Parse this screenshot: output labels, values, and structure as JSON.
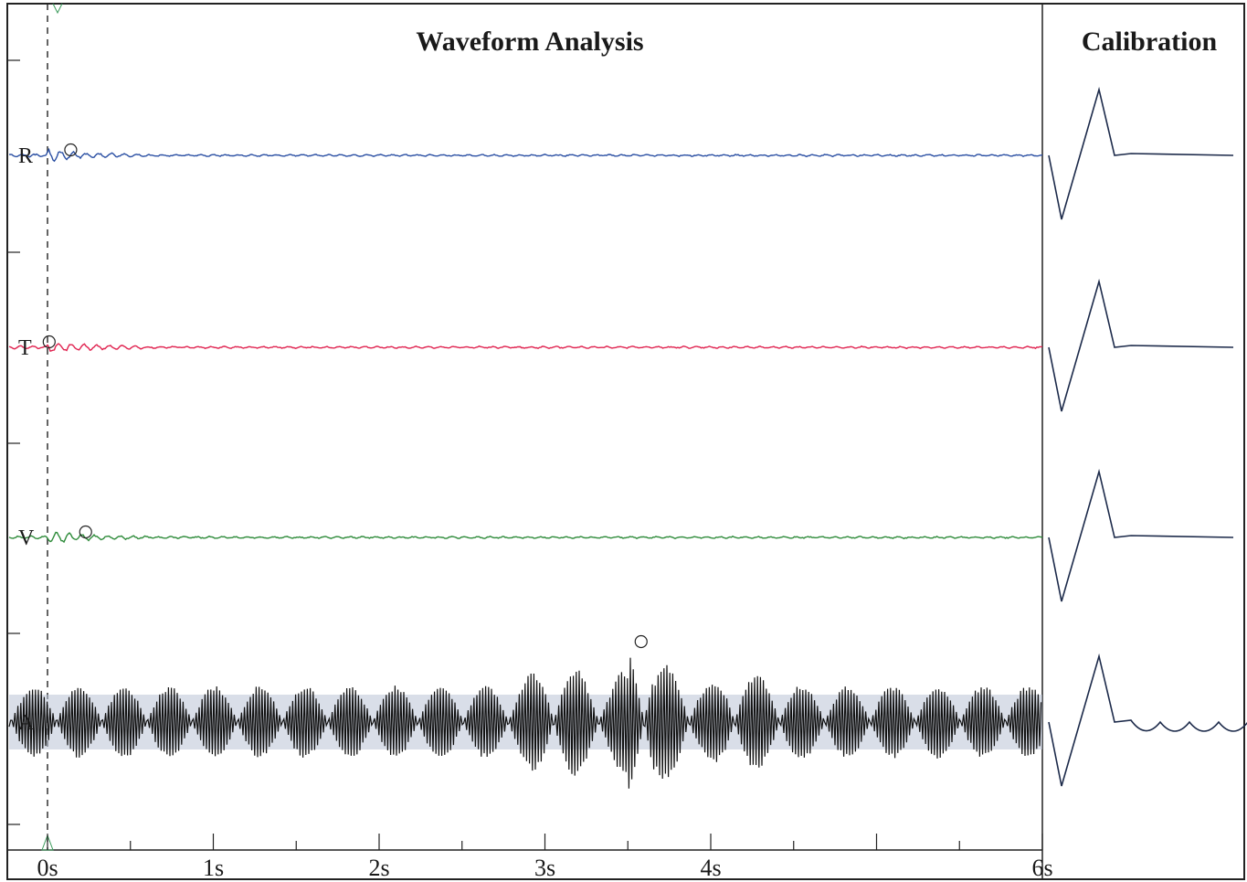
{
  "chart_data": {
    "type": "line",
    "title": "Waveform Analysis",
    "side_panel_title": "Calibration",
    "x_unit": "s",
    "xlim": [
      -0.24,
      6
    ],
    "x_ticks": [
      {
        "value": 0,
        "label": "0s"
      },
      {
        "value": 1,
        "label": "1s"
      },
      {
        "value": 2,
        "label": "2s"
      },
      {
        "value": 3,
        "label": "3s"
      },
      {
        "value": 4,
        "label": "4s"
      },
      {
        "value": 6,
        "label": "6s"
      }
    ],
    "trigger_time": 0,
    "series": [
      {
        "name": "R",
        "color": "#2a4fa3",
        "peak_marker_time": 0.14,
        "kind": "decaying"
      },
      {
        "name": "T",
        "color": "#e0224f",
        "peak_marker_time": 0.01,
        "kind": "decaying"
      },
      {
        "name": "V",
        "color": "#2e8b3a",
        "peak_marker_time": 0.23,
        "kind": "decaying"
      },
      {
        "name": "A",
        "color": "#111111",
        "peak_marker_time": 3.58,
        "kind": "oscillating"
      }
    ],
    "colors": {
      "background": "#ffffff",
      "axes": "#222222",
      "calibration": "#1c2a4a",
      "a_overlay": "#b9c3d6"
    }
  }
}
